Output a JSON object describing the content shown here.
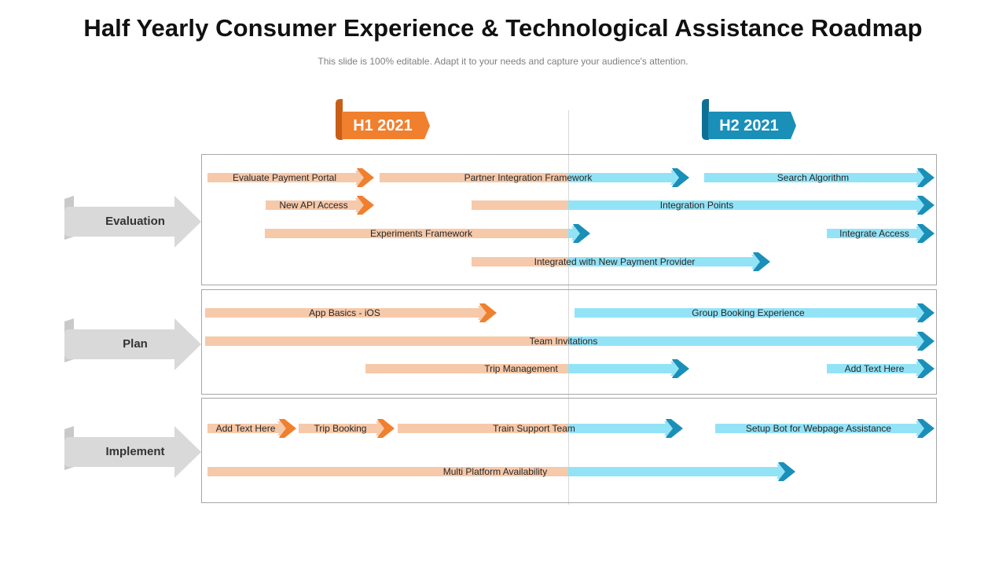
{
  "title": "Half Yearly Consumer Experience & Technological Assistance Roadmap",
  "subtitle": "This slide is 100% editable. Adapt it to your needs and capture your audience's attention.",
  "colors": {
    "h1_accent": "#f07f2e",
    "h1_accent_dark": "#c85e17",
    "h2_accent": "#1a8fb8",
    "h2_accent_dark": "#0e6f93",
    "h1_bar": "#f6c9aa",
    "h2_bar": "#93e3f7",
    "stage_arrow": "#d9d9d9"
  },
  "halves": [
    {
      "label": "H1 2021"
    },
    {
      "label": "H2 2021"
    }
  ],
  "stages": [
    {
      "label": "Evaluation"
    },
    {
      "label": "Plan"
    },
    {
      "label": "Implement"
    }
  ],
  "tasks": [
    {
      "label": "Evaluate Payment Portal"
    },
    {
      "label": "Partner Integration Framework"
    },
    {
      "label": "Search Algorithm"
    },
    {
      "label": "New API Access"
    },
    {
      "label": "Integration Points"
    },
    {
      "label": "Experiments Framework"
    },
    {
      "label": "Integrate Access"
    },
    {
      "label": "Integrated with New Payment Provider"
    },
    {
      "label": "App Basics - iOS"
    },
    {
      "label": "Group Booking Experience"
    },
    {
      "label": "Team Invitations"
    },
    {
      "label": "Trip Management"
    },
    {
      "label": "Add Text Here"
    },
    {
      "label": "Add Text Here"
    },
    {
      "label": "Trip Booking"
    },
    {
      "label": "Train Support Team"
    },
    {
      "label": "Setup Bot for Webpage Assistance"
    },
    {
      "label": "Multi Platform Availability"
    }
  ]
}
